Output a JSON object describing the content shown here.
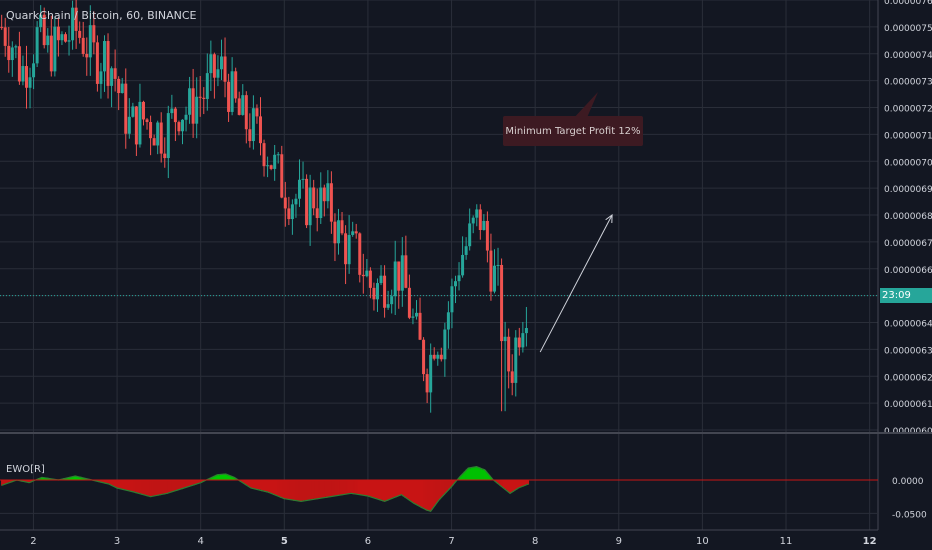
{
  "header": {
    "symbol_title": "QuarkChain / Bitcoin, 60, BINANCE"
  },
  "annotation": {
    "text": "Minimum Target Profit 12%"
  },
  "price_badge": {
    "text": "23:09"
  },
  "colors": {
    "background": "#131722",
    "grid": "#2a2e39",
    "bull": "#26a69a",
    "bear": "#ef5350",
    "ewo_positive": "#00c800",
    "ewo_negative": "#c81414",
    "price_line": "#26a69a"
  },
  "chart_data": [
    {
      "type": "candlestick",
      "title": "QuarkChain / Bitcoin, 60, BINANCE",
      "x_ticks": [
        "2",
        "3",
        "4",
        "5",
        "6",
        "7",
        "8",
        "9",
        "10",
        "11",
        "12"
      ],
      "xlim": [
        1.6,
        12.1
      ],
      "y_ticks": [
        "0.00000600",
        "0.00000610",
        "0.00000620",
        "0.00000630",
        "0.00000640",
        "0.00000650",
        "0.00000660",
        "0.00000670",
        "0.00000680",
        "0.00000690",
        "0.00000700",
        "0.00000710",
        "0.00000720",
        "0.00000730",
        "0.00000740",
        "0.00000750",
        "0.00000760"
      ],
      "ylim": [
        6e-06,
        7.6e-06
      ],
      "current_price": 6.5e-06,
      "close_path": [
        [
          1.62,
          7.5e-06
        ],
        [
          1.75,
          7.44e-06
        ],
        [
          1.85,
          7.33e-06
        ],
        [
          1.95,
          7.38e-06
        ],
        [
          2.05,
          7.47e-06
        ],
        [
          2.15,
          7.41e-06
        ],
        [
          2.3,
          7.43e-06
        ],
        [
          2.4,
          7.46e-06
        ],
        [
          2.5,
          7.49e-06
        ],
        [
          2.6,
          7.45e-06
        ],
        [
          2.75,
          7.38e-06
        ],
        [
          2.85,
          7.4e-06
        ],
        [
          2.95,
          7.35e-06
        ],
        [
          3.05,
          7.22e-06
        ],
        [
          3.15,
          7.13e-06
        ],
        [
          3.3,
          7.16e-06
        ],
        [
          3.45,
          7.13e-06
        ],
        [
          3.55,
          7.1e-06
        ],
        [
          3.65,
          7.15e-06
        ],
        [
          3.75,
          7.2e-06
        ],
        [
          3.85,
          7.18e-06
        ],
        [
          3.95,
          7.24e-06
        ],
        [
          4.05,
          7.25e-06
        ],
        [
          4.15,
          7.32e-06
        ],
        [
          4.25,
          7.34e-06
        ],
        [
          4.35,
          7.26e-06
        ],
        [
          4.45,
          7.17e-06
        ],
        [
          4.55,
          7.14e-06
        ],
        [
          4.65,
          7.11e-06
        ],
        [
          4.75,
          7.07e-06
        ],
        [
          4.85,
          7e-06
        ],
        [
          4.95,
          6.93e-06
        ],
        [
          5.05,
          6.88e-06
        ],
        [
          5.15,
          6.86e-06
        ],
        [
          5.25,
          6.84e-06
        ],
        [
          5.35,
          6.87e-06
        ],
        [
          5.45,
          6.84e-06
        ],
        [
          5.55,
          6.82e-06
        ],
        [
          5.65,
          6.73e-06
        ],
        [
          5.75,
          6.68e-06
        ],
        [
          5.85,
          6.66e-06
        ],
        [
          5.95,
          6.6e-06
        ],
        [
          6.05,
          6.52e-06
        ],
        [
          6.15,
          6.54e-06
        ],
        [
          6.25,
          6.57e-06
        ],
        [
          6.35,
          6.6e-06
        ],
        [
          6.45,
          6.52e-06
        ],
        [
          6.55,
          6.38e-06
        ],
        [
          6.65,
          6.27e-06
        ],
        [
          6.72,
          6.22e-06
        ],
        [
          6.8,
          6.36e-06
        ],
        [
          6.88,
          6.34e-06
        ],
        [
          6.95,
          6.43e-06
        ],
        [
          7.02,
          6.52e-06
        ],
        [
          7.1,
          6.64e-06
        ],
        [
          7.2,
          6.7e-06
        ],
        [
          7.28,
          6.76e-06
        ],
        [
          7.35,
          6.79e-06
        ],
        [
          7.42,
          6.68e-06
        ],
        [
          7.48,
          6.6e-06
        ],
        [
          7.55,
          6.54e-06
        ],
        [
          7.6,
          6.38e-06
        ],
        [
          7.65,
          6.24e-06
        ],
        [
          7.72,
          6.23e-06
        ],
        [
          7.78,
          6.35e-06
        ],
        [
          7.85,
          6.44e-06
        ],
        [
          7.92,
          6.5e-06
        ]
      ],
      "low_point": [
        7.62,
        6.07e-06
      ],
      "high_point": [
        7.33,
        6.84e-06
      ],
      "arrow": {
        "from": [
          8.06,
          6.29e-06
        ],
        "to": [
          8.92,
          6.8e-06
        ]
      }
    },
    {
      "type": "area",
      "title": "EWO[R]",
      "y_ticks": [
        "0.0000",
        "-0.0500"
      ],
      "ylim": [
        -0.063,
        0.027
      ],
      "zero": 0.0,
      "x": [
        1.62,
        1.8,
        1.95,
        2.1,
        2.3,
        2.5,
        2.7,
        2.9,
        3.0,
        3.2,
        3.4,
        3.6,
        3.8,
        4.0,
        4.1,
        4.2,
        4.3,
        4.4,
        4.5,
        4.6,
        4.8,
        5.0,
        5.2,
        5.4,
        5.6,
        5.8,
        6.0,
        6.2,
        6.4,
        6.55,
        6.7,
        6.75,
        6.85,
        7.0,
        7.1,
        7.2,
        7.3,
        7.4,
        7.5,
        7.6,
        7.7,
        7.8,
        7.92
      ],
      "values": [
        -0.008,
        0.0,
        -0.004,
        0.004,
        0.0,
        0.006,
        0.0,
        -0.006,
        -0.012,
        -0.018,
        -0.025,
        -0.02,
        -0.012,
        -0.004,
        0.002,
        0.008,
        0.009,
        0.004,
        -0.004,
        -0.012,
        -0.018,
        -0.028,
        -0.032,
        -0.028,
        -0.024,
        -0.02,
        -0.024,
        -0.032,
        -0.022,
        -0.035,
        -0.045,
        -0.047,
        -0.03,
        -0.01,
        0.005,
        0.018,
        0.02,
        0.015,
        0.0,
        -0.01,
        -0.02,
        -0.012,
        -0.006
      ]
    }
  ]
}
